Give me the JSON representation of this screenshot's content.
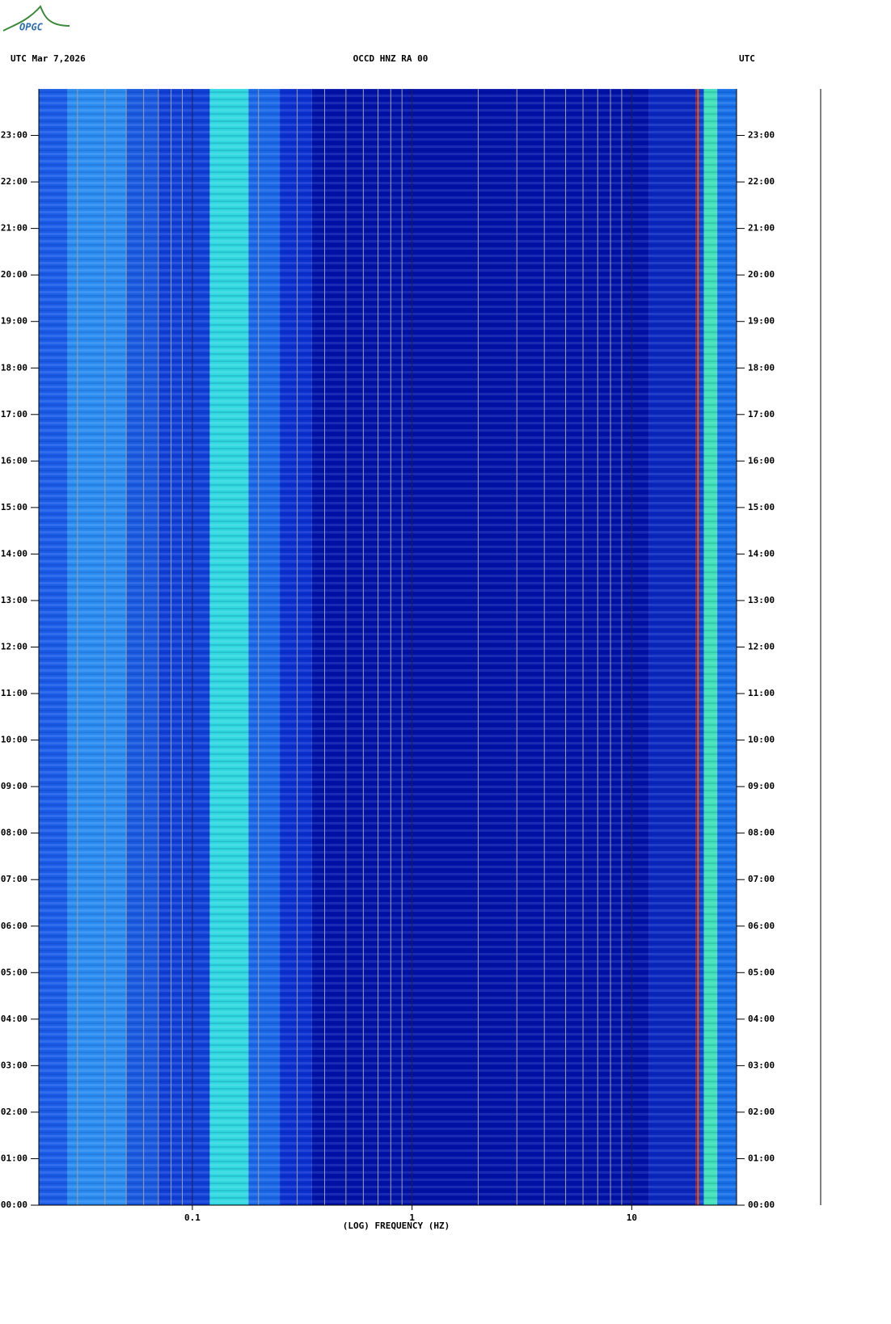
{
  "chart_data": {
    "type": "spectrogram",
    "logo": "OPGC",
    "title_left": "UTC  Mar 7,2026",
    "title": "OCCD HNZ RA 00",
    "title_right": "UTC",
    "xlabel": "(LOG) FREQUENCY (HZ)",
    "xscale": "log",
    "xlim": [
      0.02,
      30
    ],
    "xticks": [
      0.1,
      1,
      10
    ],
    "xgrid": [
      0.03,
      0.04,
      0.05,
      0.06,
      0.07,
      0.08,
      0.09,
      0.2,
      0.3,
      0.4,
      0.5,
      0.6,
      0.7,
      0.8,
      0.9,
      2,
      3,
      4,
      5,
      6,
      7,
      8,
      9,
      20
    ],
    "ylim": [
      0,
      24
    ],
    "yticks": [
      {
        "value": 0,
        "label": "00:00"
      },
      {
        "value": 1,
        "label": "01:00"
      },
      {
        "value": 2,
        "label": "02:00"
      },
      {
        "value": 3,
        "label": "03:00"
      },
      {
        "value": 4,
        "label": "04:00"
      },
      {
        "value": 5,
        "label": "05:00"
      },
      {
        "value": 6,
        "label": "06:00"
      },
      {
        "value": 7,
        "label": "07:00"
      },
      {
        "value": 8,
        "label": "08:00"
      },
      {
        "value": 9,
        "label": "09:00"
      },
      {
        "value": 10,
        "label": "10:00"
      },
      {
        "value": 11,
        "label": "11:00"
      },
      {
        "value": 12,
        "label": "12:00"
      },
      {
        "value": 13,
        "label": "13:00"
      },
      {
        "value": 14,
        "label": "14:00"
      },
      {
        "value": 15,
        "label": "15:00"
      },
      {
        "value": 16,
        "label": "16:00"
      },
      {
        "value": 17,
        "label": "17:00"
      },
      {
        "value": 18,
        "label": "18:00"
      },
      {
        "value": 19,
        "label": "19:00"
      },
      {
        "value": 20,
        "label": "20:00"
      },
      {
        "value": 21,
        "label": "21:00"
      },
      {
        "value": 22,
        "label": "22:00"
      },
      {
        "value": 23,
        "label": "23:00"
      }
    ],
    "bands": [
      {
        "from": 0.02,
        "to": 0.027,
        "color": "#1a5ce8"
      },
      {
        "from": 0.027,
        "to": 0.05,
        "color": "#2a8cf0"
      },
      {
        "from": 0.05,
        "to": 0.07,
        "color": "#1a5ae0"
      },
      {
        "from": 0.07,
        "to": 0.12,
        "color": "#1040d8"
      },
      {
        "from": 0.12,
        "to": 0.18,
        "color": "#30d8e0"
      },
      {
        "from": 0.18,
        "to": 0.25,
        "color": "#1a68e8"
      },
      {
        "from": 0.25,
        "to": 0.35,
        "color": "#0a30d0"
      },
      {
        "from": 0.35,
        "to": 12,
        "color": "#0012a8"
      },
      {
        "from": 12,
        "to": 19.6,
        "color": "#0a28c0"
      },
      {
        "from": 19.6,
        "to": 20.3,
        "color": "#b01010"
      },
      {
        "from": 20.3,
        "to": 21.3,
        "color": "#0a48d8"
      },
      {
        "from": 21.3,
        "to": 24.5,
        "color": "#40e0b8"
      },
      {
        "from": 24.5,
        "to": 30,
        "color": "#1870e8"
      }
    ]
  }
}
